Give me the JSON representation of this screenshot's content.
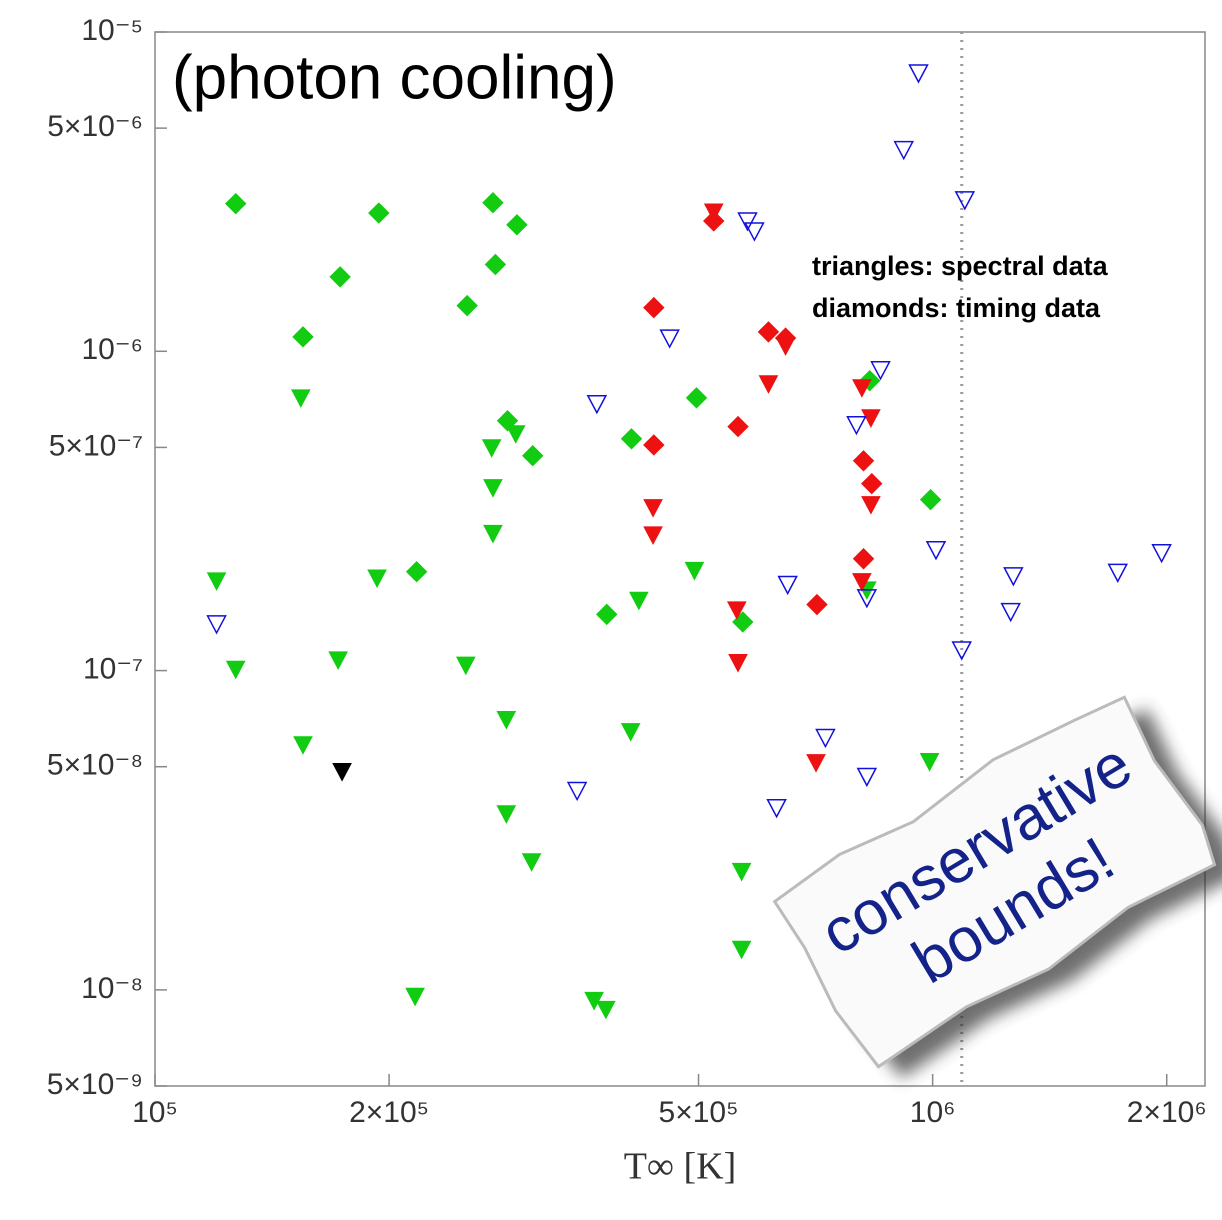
{
  "chart_data": {
    "type": "scatter",
    "title": "(photon cooling)",
    "x_label": "T∞ [K]",
    "annotations": [
      "triangles: spectral data",
      "diamonds: timing data"
    ],
    "sticker": [
      "conservative",
      "bounds!"
    ],
    "x_scale": "log",
    "y_scale": "log",
    "xlim": [
      100000,
      2240000
    ],
    "ylim": [
      5e-09,
      1e-05
    ],
    "xticks": [
      {
        "value": 100000,
        "label": "10⁵"
      },
      {
        "value": 200000,
        "label": "2×10⁵"
      },
      {
        "value": 500000,
        "label": "5×10⁵"
      },
      {
        "value": 1000000,
        "label": "10⁶"
      },
      {
        "value": 2000000,
        "label": "2×10⁶"
      }
    ],
    "yticks": [
      {
        "value": 5e-09,
        "label": "5×10⁻⁹"
      },
      {
        "value": 1e-08,
        "label": "10⁻⁸"
      },
      {
        "value": 5e-08,
        "label": "5×10⁻⁸"
      },
      {
        "value": 1e-07,
        "label": "10⁻⁷"
      },
      {
        "value": 5e-07,
        "label": "5×10⁻⁷"
      },
      {
        "value": 1e-06,
        "label": "10⁻⁶"
      },
      {
        "value": 5e-06,
        "label": "5×10⁻⁶"
      },
      {
        "value": 1e-05,
        "label": "10⁻⁵"
      }
    ],
    "reference_x": 1090000,
    "series": [
      {
        "color": "#11cc11",
        "marker": "diamond",
        "filled": true,
        "x": [
          127000,
          194000,
          173000,
          155000,
          272000,
          292000,
          274000,
          252000,
          284000,
          306000,
          217000,
          410000,
          497000,
          381000,
          570000,
          830000,
          994000
        ],
        "y": [
          2.9e-06,
          2.71e-06,
          1.71e-06,
          1.11e-06,
          2.92e-06,
          2.49e-06,
          1.87e-06,
          1.39e-06,
          6.06e-07,
          4.71e-07,
          2.04e-07,
          5.32e-07,
          7.15e-07,
          1.5e-07,
          1.42e-07,
          8.09e-07,
          3.43e-07
        ]
      },
      {
        "color": "#11cc11",
        "marker": "triangle",
        "filled": true,
        "x": [
          120000,
          127000,
          154000,
          155000,
          172000,
          193000,
          216000,
          251000,
          271000,
          272000,
          272000,
          291000,
          283000,
          283000,
          305000,
          367000,
          380000,
          409000,
          419000,
          494000,
          568000,
          568000,
          823000,
          991000
        ],
        "y": [
          1.91e-07,
          1.01e-07,
          7.15e-07,
          5.86e-08,
          1.08e-07,
          1.95e-07,
          9.55e-09,
          1.04e-07,
          4.99e-07,
          3.74e-07,
          2.69e-07,
          5.52e-07,
          7.03e-08,
          3.56e-08,
          2.52e-08,
          9.27e-09,
          8.69e-09,
          6.44e-08,
          1.66e-07,
          2.06e-07,
          2.35e-08,
          1.34e-08,
          1.79e-07,
          5.19e-08
        ]
      },
      {
        "color": "#ee1111",
        "marker": "diamond",
        "filled": true,
        "x": [
          523000,
          438000,
          615000,
          647000,
          438000,
          562000,
          815000,
          835000,
          815000,
          710000
        ],
        "y": [
          2.56e-06,
          1.37e-06,
          1.15e-06,
          1.1e-06,
          5.09e-07,
          5.81e-07,
          4.54e-07,
          3.85e-07,
          2.24e-07,
          1.61e-07
        ]
      },
      {
        "color": "#ee1111",
        "marker": "triangle",
        "filled": true,
        "x": [
          523000,
          647000,
          615000,
          811000,
          833000,
          437000,
          437000,
          833000,
          811000,
          560000,
          562000,
          708000
        ],
        "y": [
          2.73e-06,
          1.04e-06,
          7.91e-07,
          7.69e-07,
          6.19e-07,
          3.24e-07,
          2.66e-07,
          3.31e-07,
          1.9e-07,
          1.55e-07,
          1.06e-07,
          5.15e-08
        ]
      },
      {
        "color": "#1111dd",
        "marker": "triangle",
        "filled": false,
        "x": [
          959000,
          918000,
          1100000,
          578000,
          590000,
          459000,
          370000,
          857000,
          798000,
          1010000,
          651000,
          823000,
          1270000,
          1260000,
          1730000,
          1970000,
          1090000,
          120000,
          728000,
          823000,
          349000,
          630000
        ],
        "y": [
          7.44e-06,
          4.28e-06,
          2.98e-06,
          2.56e-06,
          2.38e-06,
          1.1e-06,
          6.85e-07,
          8.75e-07,
          5.89e-07,
          2.39e-07,
          1.86e-07,
          1.69e-07,
          1.98e-07,
          1.53e-07,
          2.03e-07,
          2.34e-07,
          1.16e-07,
          1.4e-07,
          6.17e-08,
          4.66e-08,
          4.21e-08,
          3.72e-08
        ]
      },
      {
        "color": "#000000",
        "marker": "triangle",
        "filled": true,
        "x": [
          174000
        ],
        "y": [
          4.83e-08
        ]
      }
    ]
  }
}
